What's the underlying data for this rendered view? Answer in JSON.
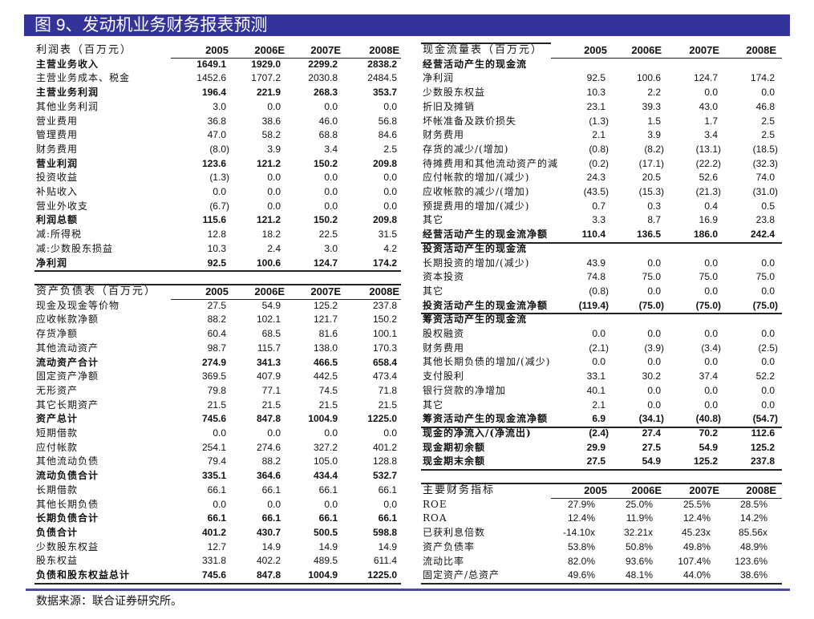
{
  "title": "图 9、发动机业务财务报表预测",
  "source": "数据来源：联合证券研究所。",
  "colors": {
    "title_bar": "#333399",
    "divider": "#4a4aa8"
  },
  "tables": {
    "income": {
      "title": "利润表（百万元）",
      "columns": [
        "2005",
        "2006E",
        "2007E",
        "2008E"
      ],
      "rows": [
        {
          "label": "主营业务收入",
          "values": [
            "1649.1",
            "1929.0",
            "2299.2",
            "2838.2"
          ],
          "bold": true
        },
        {
          "label": "主营业务成本、税金",
          "values": [
            "1452.6",
            "1707.2",
            "2030.8",
            "2484.5"
          ],
          "bold": false
        },
        {
          "label": "主营业务利润",
          "values": [
            "196.4",
            "221.9",
            "268.3",
            "353.7"
          ],
          "bold": true
        },
        {
          "label": "其他业务利润",
          "values": [
            "3.0",
            "0.0",
            "0.0",
            "0.0"
          ],
          "bold": false
        },
        {
          "label": "营业费用",
          "values": [
            "36.8",
            "38.6",
            "46.0",
            "56.8"
          ],
          "bold": false
        },
        {
          "label": "管理费用",
          "values": [
            "47.0",
            "58.2",
            "68.8",
            "84.6"
          ],
          "bold": false
        },
        {
          "label": "财务费用",
          "values": [
            "(8.0)",
            "3.9",
            "3.4",
            "2.5"
          ],
          "bold": false
        },
        {
          "label": "营业利润",
          "values": [
            "123.6",
            "121.2",
            "150.2",
            "209.8"
          ],
          "bold": true
        },
        {
          "label": "投资收益",
          "values": [
            "(1.3)",
            "0.0",
            "0.0",
            "0.0"
          ],
          "bold": false
        },
        {
          "label": "补贴收入",
          "values": [
            "0.0",
            "0.0",
            "0.0",
            "0.0"
          ],
          "bold": false
        },
        {
          "label": "营业外收支",
          "values": [
            "(6.7)",
            "0.0",
            "0.0",
            "0.0"
          ],
          "bold": false
        },
        {
          "label": "利润总额",
          "values": [
            "115.6",
            "121.2",
            "150.2",
            "209.8"
          ],
          "bold": true
        },
        {
          "label": "减:所得税",
          "values": [
            "12.8",
            "18.2",
            "22.5",
            "31.5"
          ],
          "bold": false
        },
        {
          "label": "减:少数股东损益",
          "values": [
            "10.3",
            "2.4",
            "3.0",
            "4.2"
          ],
          "bold": false
        },
        {
          "label": "净利润",
          "values": [
            "92.5",
            "100.6",
            "124.7",
            "174.2"
          ],
          "bold": true
        }
      ]
    },
    "balance": {
      "title": "资产负债表（百万元）",
      "columns": [
        "2005",
        "2006E",
        "2007E",
        "2008E"
      ],
      "rows": [
        {
          "label": "现金及现金等价物",
          "values": [
            "27.5",
            "54.9",
            "125.2",
            "237.8"
          ],
          "bold": false
        },
        {
          "label": "应收帐款净额",
          "values": [
            "88.2",
            "102.1",
            "121.7",
            "150.2"
          ],
          "bold": false
        },
        {
          "label": "存货净额",
          "values": [
            "60.4",
            "68.5",
            "81.6",
            "100.1"
          ],
          "bold": false
        },
        {
          "label": "其他流动资产",
          "values": [
            "98.7",
            "115.7",
            "138.0",
            "170.3"
          ],
          "bold": false
        },
        {
          "label": "流动资产合计",
          "values": [
            "274.9",
            "341.3",
            "466.5",
            "658.4"
          ],
          "bold": true
        },
        {
          "label": "固定资产净额",
          "values": [
            "369.5",
            "407.9",
            "442.5",
            "473.4"
          ],
          "bold": false
        },
        {
          "label": "无形资产",
          "values": [
            "79.8",
            "77.1",
            "74.5",
            "71.8"
          ],
          "bold": false
        },
        {
          "label": "其它长期资产",
          "values": [
            "21.5",
            "21.5",
            "21.5",
            "21.5"
          ],
          "bold": false
        },
        {
          "label": "资产总计",
          "values": [
            "745.6",
            "847.8",
            "1004.9",
            "1225.0"
          ],
          "bold": true
        },
        {
          "label": "短期借款",
          "values": [
            "0.0",
            "0.0",
            "0.0",
            "0.0"
          ],
          "bold": false
        },
        {
          "label": "应付帐款",
          "values": [
            "254.1",
            "274.6",
            "327.2",
            "401.2"
          ],
          "bold": false
        },
        {
          "label": "其他流动负债",
          "values": [
            "79.4",
            "88.2",
            "105.0",
            "128.8"
          ],
          "bold": false
        },
        {
          "label": "流动负债合计",
          "values": [
            "335.1",
            "364.6",
            "434.4",
            "532.7"
          ],
          "bold": true
        },
        {
          "label": "长期借款",
          "values": [
            "66.1",
            "66.1",
            "66.1",
            "66.1"
          ],
          "bold": false
        },
        {
          "label": "其他长期负债",
          "values": [
            "0.0",
            "0.0",
            "0.0",
            "0.0"
          ],
          "bold": false
        },
        {
          "label": "长期负债合计",
          "values": [
            "66.1",
            "66.1",
            "66.1",
            "66.1"
          ],
          "bold": true
        },
        {
          "label": "负债合计",
          "values": [
            "401.2",
            "430.7",
            "500.5",
            "598.8"
          ],
          "bold": true
        },
        {
          "label": "少数股东权益",
          "values": [
            "12.7",
            "14.9",
            "14.9",
            "14.9"
          ],
          "bold": false
        },
        {
          "label": "股东权益",
          "values": [
            "331.8",
            "402.2",
            "489.5",
            "611.4"
          ],
          "bold": false
        },
        {
          "label": "负债和股东权益总计",
          "values": [
            "745.6",
            "847.8",
            "1004.9",
            "1225.0"
          ],
          "bold": true
        }
      ]
    },
    "cashflow": {
      "title": "现金流量表（百万元）",
      "columns": [
        "2005",
        "2006E",
        "2007E",
        "2008E"
      ],
      "rows": [
        {
          "label": "经营活动产生的现金流",
          "values": [
            "",
            "",
            "",
            ""
          ],
          "bold": true
        },
        {
          "label": "净利润",
          "values": [
            "92.5",
            "100.6",
            "124.7",
            "174.2"
          ],
          "bold": false
        },
        {
          "label": "少数股东权益",
          "values": [
            "10.3",
            "2.2",
            "0.0",
            "0.0"
          ],
          "bold": false
        },
        {
          "label": "折旧及摊销",
          "values": [
            "23.1",
            "39.3",
            "43.0",
            "46.8"
          ],
          "bold": false
        },
        {
          "label": "坏帐准备及跌价损失",
          "values": [
            "(1.3)",
            "1.5",
            "1.7",
            "2.5"
          ],
          "bold": false
        },
        {
          "label": "财务费用",
          "values": [
            "2.1",
            "3.9",
            "3.4",
            "2.5"
          ],
          "bold": false
        },
        {
          "label": "存货的减少/(增加)",
          "values": [
            "(0.8)",
            "(8.2)",
            "(13.1)",
            "(18.5)"
          ],
          "bold": false
        },
        {
          "label": "待摊费用和其他流动资产的減",
          "values": [
            "(0.2)",
            "(17.1)",
            "(22.2)",
            "(32.3)"
          ],
          "bold": false
        },
        {
          "label": "应付帐款的增加/(减少)",
          "values": [
            "24.3",
            "20.5",
            "52.6",
            "74.0"
          ],
          "bold": false
        },
        {
          "label": "应收帐款的减少/(增加)",
          "values": [
            "(43.5)",
            "(15.3)",
            "(21.3)",
            "(31.0)"
          ],
          "bold": false
        },
        {
          "label": "预提费用的增加/(减少)",
          "values": [
            "0.7",
            "0.3",
            "0.4",
            "0.5"
          ],
          "bold": false
        },
        {
          "label": "其它",
          "values": [
            "3.3",
            "8.7",
            "16.9",
            "23.8"
          ],
          "bold": false
        },
        {
          "label": "经营活动产生的现金流净额",
          "values": [
            "110.4",
            "136.5",
            "186.0",
            "242.4"
          ],
          "bold": true
        },
        {
          "label": "投资活动产生的现金流",
          "values": [
            "",
            "",
            "",
            ""
          ],
          "bold": true
        },
        {
          "label": "长期投资的增加/(减少)",
          "values": [
            "43.9",
            "0.0",
            "0.0",
            "0.0"
          ],
          "bold": false
        },
        {
          "label": "资本投资",
          "values": [
            "74.8",
            "75.0",
            "75.0",
            "75.0"
          ],
          "bold": false
        },
        {
          "label": "其它",
          "values": [
            "(0.8)",
            "0.0",
            "0.0",
            "0.0"
          ],
          "bold": false
        },
        {
          "label": "投资活动产生的现金流净额",
          "values": [
            "(119.4)",
            "(75.0)",
            "(75.0)",
            "(75.0)"
          ],
          "bold": true
        },
        {
          "label": "筹资活动产生的现金流",
          "values": [
            "",
            "",
            "",
            ""
          ],
          "bold": true
        },
        {
          "label": "股权融资",
          "values": [
            "0.0",
            "0.0",
            "0.0",
            "0.0"
          ],
          "bold": false
        },
        {
          "label": "财务费用",
          "values": [
            "(2.1)",
            "(3.9)",
            "(3.4)",
            "(2.5)"
          ],
          "bold": false
        },
        {
          "label": "其他长期负债的增加/(减少)",
          "values": [
            "0.0",
            "0.0",
            "0.0",
            "0.0"
          ],
          "bold": false
        },
        {
          "label": "支付股利",
          "values": [
            "33.1",
            "30.2",
            "37.4",
            "52.2"
          ],
          "bold": false
        },
        {
          "label": "银行贷款的净增加",
          "values": [
            "40.1",
            "0.0",
            "0.0",
            "0.0"
          ],
          "bold": false
        },
        {
          "label": "其它",
          "values": [
            "2.1",
            "0.0",
            "0.0",
            "0.0"
          ],
          "bold": false
        },
        {
          "label": "筹资活动产生的现金流净额",
          "values": [
            "6.9",
            "(34.1)",
            "(40.8)",
            "(54.7)"
          ],
          "bold": true
        },
        {
          "label": "现金的净流入/(净流出)",
          "values": [
            "(2.4)",
            "27.4",
            "70.2",
            "112.6"
          ],
          "bold": true
        },
        {
          "label": "现金期初余额",
          "values": [
            "29.9",
            "27.5",
            "54.9",
            "125.2"
          ],
          "bold": true
        },
        {
          "label": "现金期末余额",
          "values": [
            "27.5",
            "54.9",
            "125.2",
            "237.8"
          ],
          "bold": true
        }
      ]
    },
    "ratios": {
      "title": "主要财务指标",
      "columns": [
        "2005",
        "2006E",
        "2007E",
        "2008E"
      ],
      "rows": [
        {
          "label": "ROE",
          "values": [
            "27.9%",
            "25.0%",
            "25.5%",
            "28.5%"
          ],
          "bold": false
        },
        {
          "label": "ROA",
          "values": [
            "12.4%",
            "11.9%",
            "12.4%",
            "14.2%"
          ],
          "bold": false
        },
        {
          "label": "已获利息倍数",
          "values": [
            "-14.10x",
            "32.21x",
            "45.23x",
            "85.56x"
          ],
          "bold": false
        },
        {
          "label": "资产负债率",
          "values": [
            "53.8%",
            "50.8%",
            "49.8%",
            "48.9%"
          ],
          "bold": false
        },
        {
          "label": "流动比率",
          "values": [
            "82.0%",
            "93.6%",
            "107.4%",
            "123.6%"
          ],
          "bold": false
        },
        {
          "label": "固定资产/总资产",
          "values": [
            "49.6%",
            "48.1%",
            "44.0%",
            "38.6%"
          ],
          "bold": false
        }
      ]
    }
  }
}
